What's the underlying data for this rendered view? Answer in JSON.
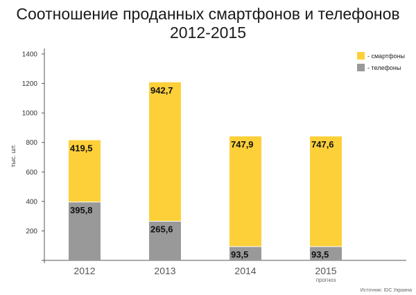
{
  "title_line1": "Соотношение проданных смартфонов и телефонов",
  "title_line2": "2012-2015",
  "source": "Источник: IDC Украина",
  "colors": {
    "smartphones": "#fdd03a",
    "phones": "#999999",
    "axis": "#555555"
  },
  "chart_data": {
    "type": "bar",
    "stacked": true,
    "title": "Соотношение проданных смартфонов и телефонов 2012-2015",
    "ylabel": "тыс. шт.",
    "xlabel": "",
    "ylim": [
      0,
      1400
    ],
    "yticks": [
      200,
      400,
      600,
      800,
      1000,
      1200,
      1400
    ],
    "categories": [
      "2012",
      "2013",
      "2014",
      "2015"
    ],
    "category_notes": [
      "",
      "",
      "",
      "прогноз"
    ],
    "legend_position": "top-right",
    "grid": false,
    "series": [
      {
        "name": "- телефоны",
        "values": [
          395.8,
          265.6,
          93.5,
          93.5
        ],
        "labels": [
          "395,8",
          "265,6",
          "93,5",
          "93,5"
        ]
      },
      {
        "name": "- смартфоны",
        "values": [
          419.5,
          942.7,
          747.9,
          747.6
        ],
        "labels": [
          "419,5",
          "942,7",
          "747,9",
          "747,6"
        ]
      }
    ]
  }
}
